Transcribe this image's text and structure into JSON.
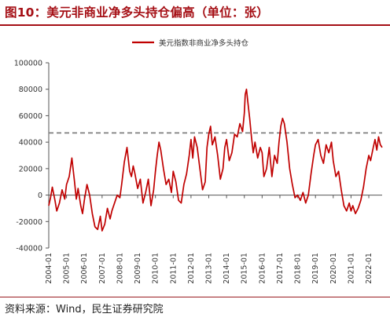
{
  "header": {
    "title": "图10：美元非商业净多头持仓偏高（单位：张）"
  },
  "footer": {
    "source": "资料来源：Wind，民生证券研究院"
  },
  "colors": {
    "series": "#c00000",
    "reference": "#7f7f7f",
    "accent": "#a50f15"
  },
  "chart_data": {
    "type": "line",
    "legend_position": "top-center",
    "grid": false,
    "ylim": [
      -40000,
      100000
    ],
    "y_ticks": [
      -40000,
      -20000,
      0,
      20000,
      40000,
      60000,
      80000,
      100000
    ],
    "y_tick_labels": [
      "-40000",
      "-20000",
      "0",
      "20000",
      "40000",
      "60000",
      "80000",
      "100000"
    ],
    "x_range": [
      2004.0,
      2022.75
    ],
    "x_ticks": [
      "2004-01",
      "2005-01",
      "2006-01",
      "2007-01",
      "2008-01",
      "2009-01",
      "2010-01",
      "2011-01",
      "2012-01",
      "2013-01",
      "2014-01",
      "2015-01",
      "2016-01",
      "2017-01",
      "2018-01",
      "2019-01",
      "2020-01",
      "2021-01",
      "2022-01"
    ],
    "reference_line": {
      "y": 47000,
      "style": "dashed"
    },
    "series": [
      {
        "name": "美元指数非商业净多头持仓",
        "x": [
          2004.0,
          2004.1,
          2004.2,
          2004.35,
          2004.45,
          2004.6,
          2004.75,
          2004.9,
          2005.0,
          2005.15,
          2005.3,
          2005.45,
          2005.55,
          2005.65,
          2005.8,
          2005.9,
          2006.0,
          2006.15,
          2006.3,
          2006.45,
          2006.6,
          2006.75,
          2006.9,
          2007.0,
          2007.15,
          2007.3,
          2007.45,
          2007.55,
          2007.7,
          2007.85,
          2008.0,
          2008.1,
          2008.25,
          2008.4,
          2008.55,
          2008.65,
          2008.75,
          2008.85,
          2009.0,
          2009.15,
          2009.3,
          2009.45,
          2009.6,
          2009.75,
          2009.9,
          2010.0,
          2010.1,
          2010.2,
          2010.3,
          2010.45,
          2010.6,
          2010.75,
          2010.9,
          2011.0,
          2011.15,
          2011.3,
          2011.45,
          2011.6,
          2011.75,
          2011.9,
          2012.0,
          2012.1,
          2012.2,
          2012.35,
          2012.5,
          2012.65,
          2012.8,
          2012.9,
          2013.0,
          2013.1,
          2013.2,
          2013.35,
          2013.5,
          2013.65,
          2013.8,
          2013.9,
          2014.0,
          2014.15,
          2014.3,
          2014.45,
          2014.6,
          2014.75,
          2014.9,
          2015.0,
          2015.05,
          2015.12,
          2015.2,
          2015.3,
          2015.4,
          2015.5,
          2015.6,
          2015.75,
          2015.9,
          2016.0,
          2016.1,
          2016.25,
          2016.4,
          2016.55,
          2016.7,
          2016.85,
          2016.95,
          2017.05,
          2017.15,
          2017.25,
          2017.4,
          2017.55,
          2017.7,
          2017.85,
          2018.0,
          2018.15,
          2018.3,
          2018.45,
          2018.6,
          2018.75,
          2018.9,
          2019.0,
          2019.15,
          2019.3,
          2019.45,
          2019.6,
          2019.75,
          2019.9,
          2020.0,
          2020.15,
          2020.3,
          2020.45,
          2020.6,
          2020.75,
          2020.9,
          2021.0,
          2021.1,
          2021.25,
          2021.4,
          2021.55,
          2021.7,
          2021.85,
          2022.0,
          2022.1,
          2022.25,
          2022.35,
          2022.45,
          2022.55,
          2022.65,
          2022.75
        ],
        "y": [
          -8000,
          -2000,
          6000,
          -4000,
          -12000,
          -6000,
          4000,
          -3000,
          8000,
          14000,
          28000,
          10000,
          -3000,
          5000,
          -8000,
          -14000,
          -4000,
          8000,
          0,
          -14000,
          -24000,
          -26000,
          -16000,
          -27000,
          -22000,
          -10000,
          -18000,
          -12000,
          -6000,
          0,
          -2000,
          8000,
          25000,
          36000,
          18000,
          14000,
          22000,
          16000,
          5000,
          12000,
          -6000,
          2000,
          12000,
          -8000,
          4000,
          18000,
          30000,
          40000,
          34000,
          20000,
          8000,
          12000,
          2000,
          18000,
          10000,
          -4000,
          -6000,
          8000,
          16000,
          30000,
          42000,
          28000,
          44000,
          36000,
          20000,
          4000,
          10000,
          36000,
          46000,
          52000,
          38000,
          44000,
          30000,
          12000,
          20000,
          36000,
          42000,
          26000,
          32000,
          46000,
          44000,
          54000,
          48000,
          62000,
          76000,
          80000,
          70000,
          58000,
          44000,
          32000,
          40000,
          28000,
          36000,
          32000,
          14000,
          20000,
          36000,
          14000,
          30000,
          24000,
          40000,
          52000,
          58000,
          54000,
          40000,
          20000,
          8000,
          -2000,
          0,
          -4000,
          2000,
          -6000,
          0,
          16000,
          30000,
          38000,
          42000,
          30000,
          24000,
          38000,
          32000,
          40000,
          26000,
          14000,
          18000,
          4000,
          -8000,
          -12000,
          -6000,
          -12000,
          -8000,
          -14000,
          -10000,
          -4000,
          6000,
          20000,
          30000,
          26000,
          36000,
          42000,
          34000,
          44000,
          38000,
          36000
        ]
      }
    ]
  }
}
